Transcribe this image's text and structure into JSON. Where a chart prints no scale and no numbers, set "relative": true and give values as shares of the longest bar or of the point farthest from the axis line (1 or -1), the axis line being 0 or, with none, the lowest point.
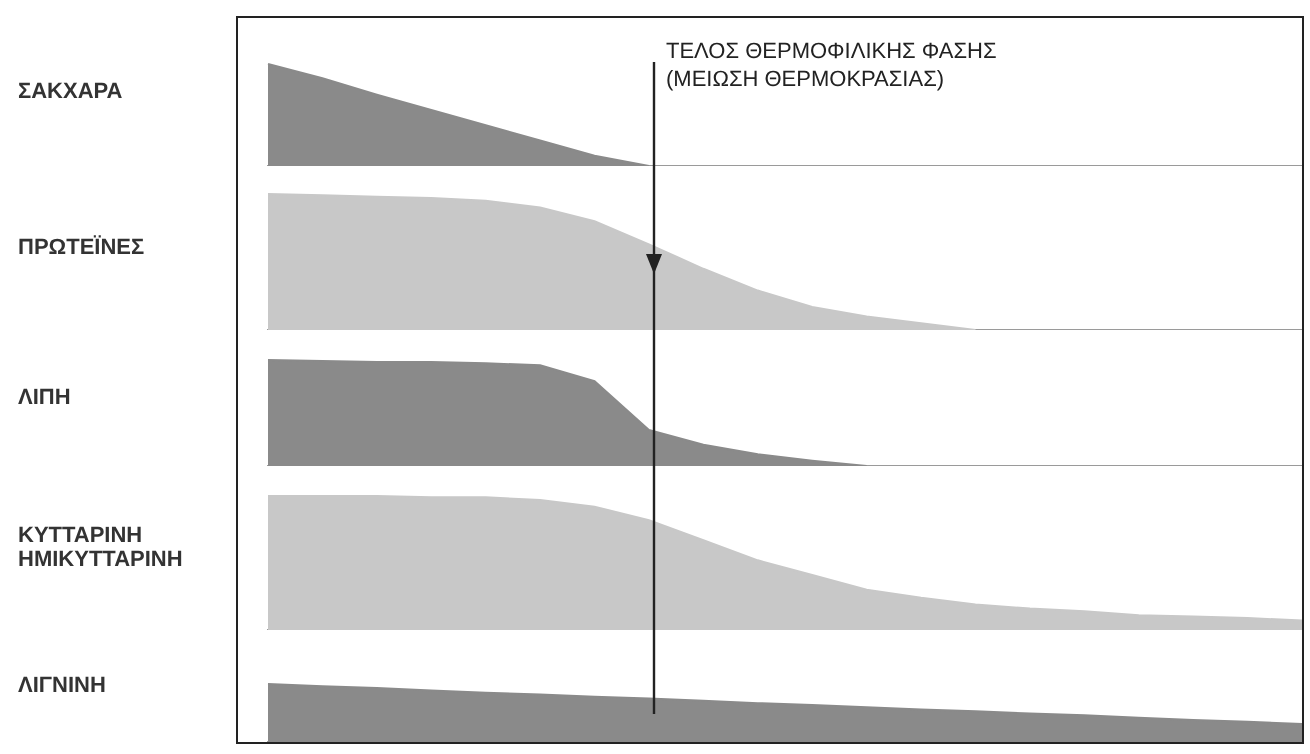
{
  "chart_data": [
    {
      "type": "area",
      "ylabel": "ΣΑΚΧΑΡΑ",
      "relative": true,
      "categories": [
        null,
        null,
        null,
        null,
        null,
        null,
        null,
        null,
        null,
        null,
        null,
        null,
        null,
        null,
        null,
        null,
        null,
        null,
        null,
        null
      ],
      "values": [
        1,
        0.86,
        0.7,
        0.55,
        0.4,
        0.25,
        0.1,
        0,
        null,
        null,
        null,
        null,
        null,
        null,
        null,
        null,
        null,
        null,
        null,
        null
      ],
      "color": "#8a8a8a",
      "tick_labels": false,
      "annotations": [
        "ΤΕΛΟΣ ΘΕΡΜΟΦΙΛΙΚΗΣ ΦΑΣΗΣ",
        "(ΜΕΙΩΣΗ ΘΕΡΜΟΚΡΑΣΙΑΣ)"
      ]
    },
    {
      "type": "area",
      "ylabel": "ΠΡΩΤΕΪΝΕΣ",
      "relative": true,
      "categories": [
        null,
        null,
        null,
        null,
        null,
        null,
        null,
        null,
        null,
        null,
        null,
        null,
        null,
        null,
        null,
        null,
        null,
        null,
        null,
        null
      ],
      "values": [
        1,
        0.99,
        0.98,
        0.97,
        0.95,
        0.9,
        0.8,
        0.63,
        0.45,
        0.29,
        0.17,
        0.1,
        0.05,
        0,
        null,
        null,
        null,
        null,
        null,
        null
      ],
      "color": "#c8c8c8",
      "tick_labels": false
    },
    {
      "type": "area",
      "ylabel": "ΛΙΠΗ",
      "relative": true,
      "categories": [
        null,
        null,
        null,
        null,
        null,
        null,
        null,
        null,
        null,
        null,
        null,
        null,
        null,
        null,
        null,
        null,
        null,
        null,
        null,
        null
      ],
      "values": [
        1,
        0.99,
        0.98,
        0.98,
        0.97,
        0.95,
        0.8,
        0.34,
        0.2,
        0.11,
        0.05,
        0,
        null,
        null,
        null,
        null,
        null,
        null,
        null,
        null
      ],
      "color": "#8a8a8a",
      "tick_labels": false
    },
    {
      "type": "area",
      "ylabel": "ΚΥΤΤΑΡΙΝΗ\nΗΜΙΚΥΤΤΑΡΙΝΗ",
      "relative": true,
      "categories": [
        null,
        null,
        null,
        null,
        null,
        null,
        null,
        null,
        null,
        null,
        null,
        null,
        null,
        null,
        null,
        null,
        null,
        null,
        null,
        null
      ],
      "values": [
        1,
        1,
        1,
        0.99,
        0.99,
        0.97,
        0.92,
        0.82,
        0.67,
        0.52,
        0.41,
        0.3,
        0.24,
        0.19,
        0.16,
        0.14,
        0.11,
        0.1,
        0.09,
        0.07
      ],
      "color": "#c8c8c8",
      "tick_labels": false
    },
    {
      "type": "area",
      "ylabel": "ΛΙΓΝΙΝΗ",
      "relative": true,
      "categories": [
        null,
        null,
        null,
        null,
        null,
        null,
        null,
        null,
        null,
        null,
        null,
        null,
        null,
        null,
        null,
        null,
        null,
        null,
        null,
        null
      ],
      "values": [
        1,
        0.96,
        0.93,
        0.89,
        0.85,
        0.82,
        0.78,
        0.75,
        0.71,
        0.67,
        0.64,
        0.6,
        0.56,
        0.53,
        0.49,
        0.46,
        0.42,
        0.38,
        0.35,
        0.31
      ],
      "color": "#8a8a8a",
      "tick_labels": false
    }
  ]
}
